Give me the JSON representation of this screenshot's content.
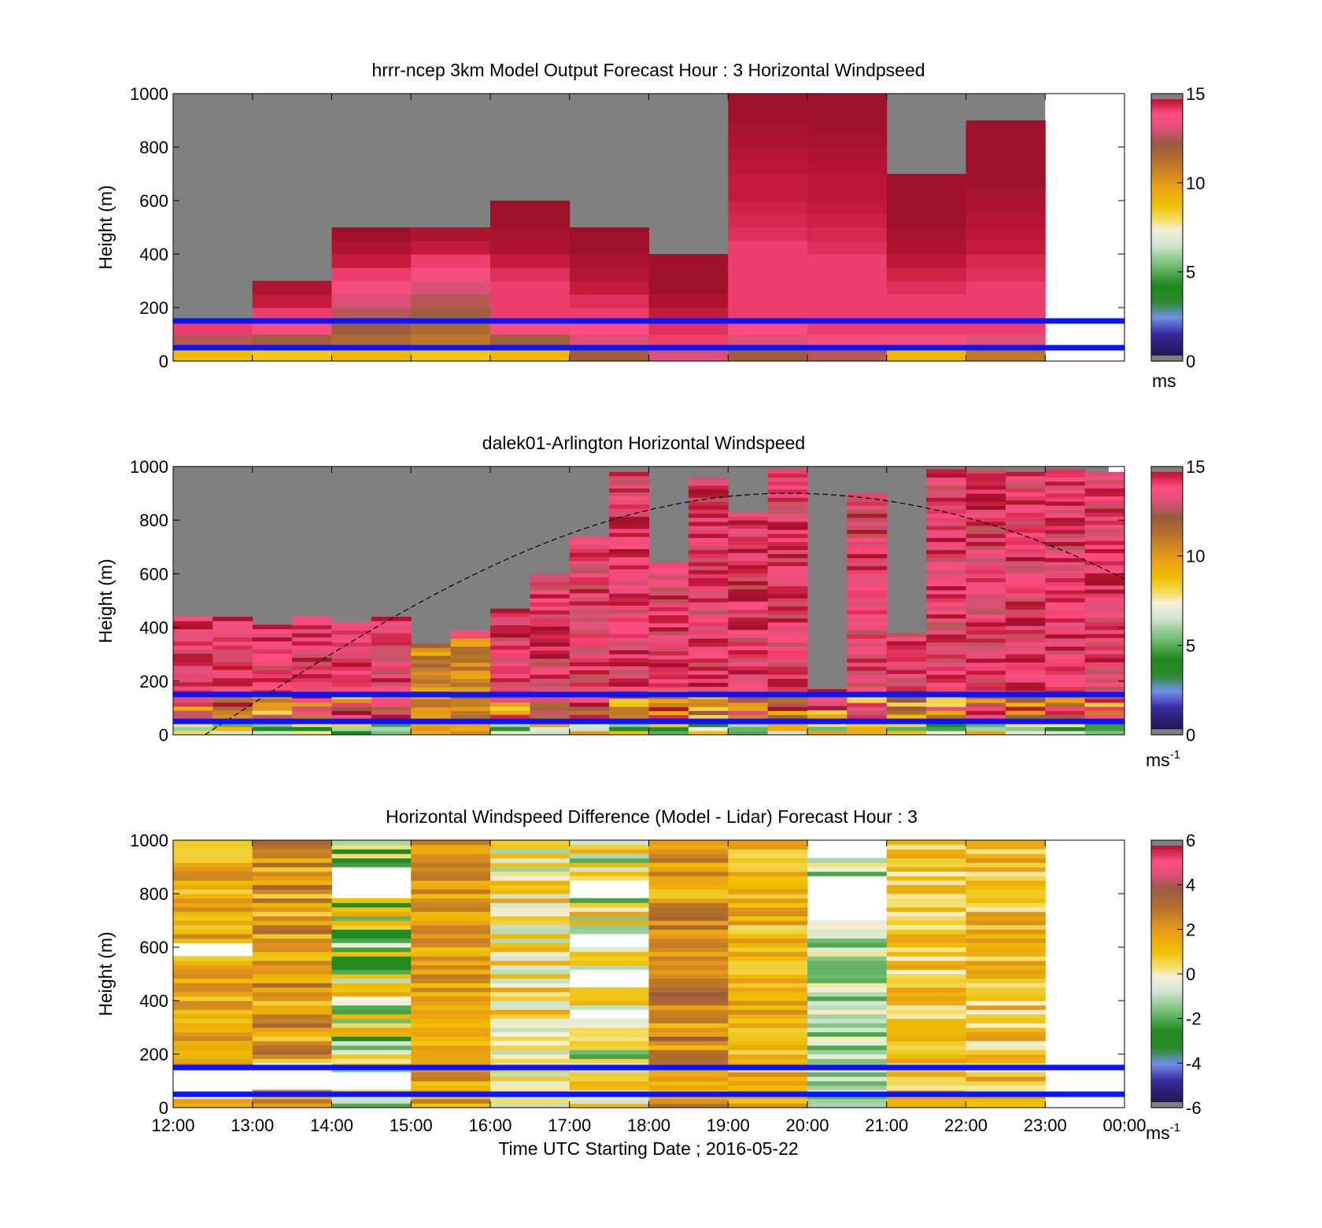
{
  "chart_data": [
    {
      "type": "heatmap",
      "title": "hrrr-ncep 3km Model Output   Forecast Hour : 3 Horizontal Windpseed",
      "ylabel": "Height (m)",
      "ylim": [
        0,
        1000
      ],
      "yticks": [
        "0",
        "200",
        "400",
        "600",
        "800",
        "1000"
      ],
      "xlim": [
        12,
        24
      ],
      "colorbar": {
        "ticks": [
          "0",
          "5",
          "10",
          "15"
        ],
        "range": [
          0,
          15
        ],
        "unit": "ms",
        "unit_sup": ""
      },
      "reference_lines_height_m": [
        150,
        50
      ],
      "columns": [
        {
          "start": 12,
          "end": 13,
          "top": 150,
          "values": [
            8.8,
            12.5,
            14.0
          ]
        },
        {
          "start": 13,
          "end": 14,
          "top": 300,
          "values": [
            8.5,
            12.0,
            13.5,
            14.0,
            14.5,
            14.8
          ]
        },
        {
          "start": 14,
          "end": 15,
          "top": 500,
          "values": [
            9.0,
            11.5,
            12.0,
            12.5,
            13.0,
            13.5,
            14.0,
            14.5,
            14.8,
            15.0
          ]
        },
        {
          "start": 15,
          "end": 16,
          "top": 500,
          "values": [
            8.5,
            11.0,
            11.5,
            12.0,
            12.5,
            13.0,
            13.5,
            14.0,
            14.5,
            14.8
          ]
        },
        {
          "start": 16,
          "end": 17,
          "top": 600,
          "values": [
            9.0,
            12.0,
            13.5,
            14.0,
            14.0,
            14.0,
            14.2,
            14.5,
            14.8,
            14.9,
            15.0,
            15.0
          ]
        },
        {
          "start": 17,
          "end": 18,
          "top": 500,
          "values": [
            12.0,
            13.0,
            13.8,
            14.0,
            14.2,
            14.5,
            14.7,
            14.8,
            15.0,
            15.0
          ]
        },
        {
          "start": 18,
          "end": 19,
          "top": 400,
          "values": [
            13.0,
            14.0,
            14.2,
            14.5,
            14.8,
            15.0,
            15.0,
            15.0
          ]
        },
        {
          "start": 19,
          "end": 20,
          "top": 1000,
          "values": [
            12.0,
            13.0,
            13.8,
            14.0,
            14.0,
            14.0,
            14.0,
            14.0,
            14.0,
            14.2,
            14.3,
            14.4,
            14.5,
            14.5,
            14.6,
            14.7,
            14.8,
            14.9,
            15.0,
            15.0
          ]
        },
        {
          "start": 20,
          "end": 21,
          "top": 1000,
          "values": [
            12.5,
            13.5,
            14.0,
            14.0,
            14.0,
            14.0,
            14.0,
            14.0,
            14.2,
            14.3,
            14.4,
            14.5,
            14.6,
            14.6,
            14.7,
            14.8,
            14.9,
            15.0,
            15.0,
            15.0
          ]
        },
        {
          "start": 21,
          "end": 22,
          "top": 700,
          "values": [
            9.0,
            13.5,
            14.0,
            14.0,
            14.0,
            14.2,
            14.4,
            14.6,
            14.8,
            14.9,
            15.0,
            15.0,
            15.0,
            15.0
          ]
        },
        {
          "start": 22,
          "end": 23,
          "top": 900,
          "values": [
            11.0,
            13.0,
            14.0,
            14.0,
            14.0,
            14.0,
            14.2,
            14.3,
            14.5,
            14.6,
            14.7,
            14.8,
            14.9,
            15.0,
            15.0,
            15.0,
            15.0,
            15.0
          ]
        }
      ]
    },
    {
      "type": "heatmap",
      "title": "dalek01-Arlington  Horizontal Windspeed",
      "ylabel": "Height (m)",
      "ylim": [
        0,
        1000
      ],
      "yticks": [
        "0",
        "200",
        "400",
        "600",
        "800",
        "1000"
      ],
      "xlim": [
        12,
        24
      ],
      "colorbar": {
        "ticks": [
          "0",
          "5",
          "10",
          "15"
        ],
        "range": [
          0,
          15
        ],
        "unit": "ms",
        "unit_sup": "-1"
      },
      "reference_lines_height_m": [
        150,
        50
      ],
      "boundary_layer_curve": {
        "start_hour": 12.4,
        "peak_hour": 19.75,
        "peak_height": 900,
        "end_hour": 24,
        "end_height": 580
      },
      "columns": [
        {
          "start": 12.0,
          "end": 12.5,
          "top": 440
        },
        {
          "start": 12.5,
          "end": 13.0,
          "top": 440
        },
        {
          "start": 13.0,
          "end": 13.5,
          "top": 410
        },
        {
          "start": 13.5,
          "end": 14.0,
          "top": 440
        },
        {
          "start": 14.0,
          "end": 14.5,
          "top": 420
        },
        {
          "start": 14.5,
          "end": 15.0,
          "top": 440
        },
        {
          "start": 15.0,
          "end": 15.5,
          "top": 340
        },
        {
          "start": 15.5,
          "end": 16.0,
          "top": 390
        },
        {
          "start": 16.0,
          "end": 16.5,
          "top": 470
        },
        {
          "start": 16.5,
          "end": 17.0,
          "top": 600
        },
        {
          "start": 17.0,
          "end": 17.5,
          "top": 740
        },
        {
          "start": 17.5,
          "end": 18.0,
          "top": 980
        },
        {
          "start": 18.0,
          "end": 18.5,
          "top": 640
        },
        {
          "start": 18.5,
          "end": 19.0,
          "top": 960
        },
        {
          "start": 19.0,
          "end": 19.5,
          "top": 830
        },
        {
          "start": 19.5,
          "end": 20.0,
          "top": 990
        },
        {
          "start": 20.0,
          "end": 20.5,
          "top": 170
        },
        {
          "start": 20.5,
          "end": 21.0,
          "top": 900
        },
        {
          "start": 21.0,
          "end": 21.5,
          "top": 380
        },
        {
          "start": 21.5,
          "end": 22.0,
          "top": 990
        },
        {
          "start": 22.0,
          "end": 22.5,
          "top": 990
        },
        {
          "start": 22.5,
          "end": 23.0,
          "top": 980
        },
        {
          "start": 23.0,
          "end": 23.5,
          "top": 990
        },
        {
          "start": 23.5,
          "end": 24.0,
          "top": 980
        }
      ]
    },
    {
      "type": "heatmap",
      "title": "Horizontal Windspeed Difference (Model - Lidar) Forecast Hour : 3",
      "xlabel": "Time UTC  Starting Date ; 2016-05-22",
      "ylabel": "Height (m)",
      "ylim": [
        0,
        1000
      ],
      "yticks": [
        "0",
        "200",
        "400",
        "600",
        "800",
        "1000"
      ],
      "xlim": [
        12,
        24
      ],
      "xticks": [
        "12:00",
        "13:00",
        "14:00",
        "15:00",
        "16:00",
        "17:00",
        "18:00",
        "19:00",
        "20:00",
        "21:00",
        "22:00",
        "23:00",
        "00:00"
      ],
      "colorbar": {
        "ticks": [
          "-6",
          "-4",
          "-2",
          "0",
          "2",
          "4",
          "6"
        ],
        "range": [
          -6,
          6
        ],
        "unit": "ms",
        "unit_sup": "-1"
      },
      "reference_lines_height_m": [
        150,
        50
      ],
      "columns": [
        {
          "start": 12,
          "end": 13,
          "mean": 1.5,
          "spread": 1.0,
          "gaps": [
            [
              560,
              620
            ],
            [
              40,
              150
            ]
          ]
        },
        {
          "start": 13,
          "end": 14,
          "mean": 2.0,
          "spread": 1.5,
          "gaps": [
            [
              60,
              160
            ]
          ]
        },
        {
          "start": 14,
          "end": 15,
          "mean": -0.5,
          "spread": 2.5,
          "gaps": [
            [
              790,
              900
            ],
            [
              400,
              420
            ],
            [
              60,
              140
            ]
          ]
        },
        {
          "start": 15,
          "end": 16,
          "mean": 1.8,
          "spread": 1.0,
          "gaps": []
        },
        {
          "start": 16,
          "end": 17,
          "mean": 0.2,
          "spread": 1.5,
          "gaps": []
        },
        {
          "start": 17,
          "end": 18,
          "mean": -0.3,
          "spread": 2.0,
          "gaps": [
            [
              330,
              370
            ],
            [
              450,
              520
            ],
            [
              600,
              650
            ],
            [
              790,
              850
            ]
          ]
        },
        {
          "start": 18,
          "end": 19,
          "mean": 2.2,
          "spread": 1.5,
          "gaps": []
        },
        {
          "start": 19,
          "end": 20,
          "mean": 1.3,
          "spread": 1.0,
          "gaps": []
        },
        {
          "start": 20,
          "end": 21,
          "mean": -1.0,
          "spread": 1.2,
          "gaps": [
            [
              700,
              860
            ],
            [
              930,
              1000
            ]
          ]
        },
        {
          "start": 21,
          "end": 22,
          "mean": 0.8,
          "spread": 1.0,
          "gaps": []
        },
        {
          "start": 22,
          "end": 23,
          "mean": 1.0,
          "spread": 1.2,
          "gaps": []
        }
      ]
    }
  ]
}
